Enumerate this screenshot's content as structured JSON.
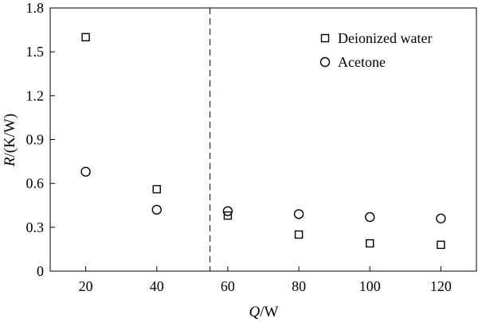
{
  "chart_data": {
    "type": "scatter",
    "title": "",
    "xlabel": {
      "var": "Q",
      "unit": "/W"
    },
    "ylabel": {
      "var": "R",
      "unit": "/(K/W)"
    },
    "xlim": [
      10,
      130
    ],
    "ylim": [
      0,
      1.8
    ],
    "xticks": [
      20,
      40,
      60,
      80,
      100,
      120
    ],
    "xtick_labels": [
      "20",
      "40",
      "60",
      "80",
      "100",
      "120"
    ],
    "yticks": [
      0,
      0.3,
      0.6,
      0.9,
      1.2,
      1.5,
      1.8
    ],
    "ytick_labels": [
      "0",
      "0.3",
      "0.6",
      "0.9",
      "1.2",
      "1.5",
      "1.8"
    ],
    "grid": false,
    "legend_position": "top-right",
    "vline_x": 55,
    "series": [
      {
        "name": "Deionized water",
        "marker": "square",
        "x": [
          20,
          40,
          60,
          80,
          100,
          120
        ],
        "y": [
          1.6,
          0.56,
          0.38,
          0.25,
          0.19,
          0.18
        ]
      },
      {
        "name": "Acetone",
        "marker": "circle",
        "x": [
          20,
          40,
          60,
          80,
          100,
          120
        ],
        "y": [
          0.68,
          0.42,
          0.41,
          0.39,
          0.37,
          0.36
        ]
      }
    ]
  }
}
